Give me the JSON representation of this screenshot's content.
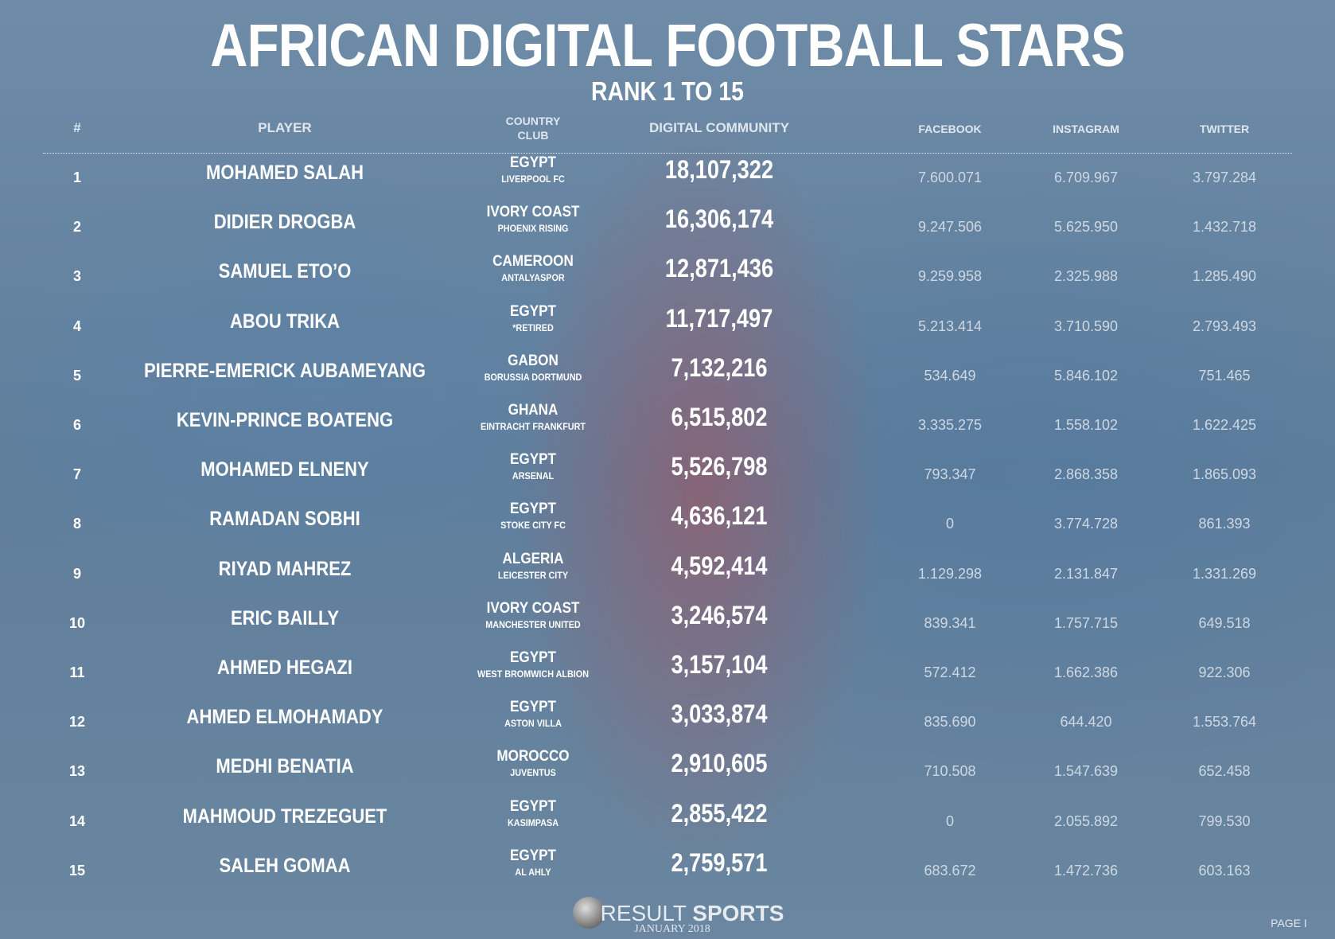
{
  "header": {
    "title": "AFRICAN DIGITAL FOOTBALL STARS",
    "subtitle": "RANK 1 TO 15"
  },
  "table": {
    "columns": {
      "rank": "#",
      "player": "PLAYER",
      "country": "COUNTRY",
      "club": "CLUB",
      "community": "DIGITAL COMMUNITY",
      "facebook": "FACEBOOK",
      "instagram": "INSTAGRAM",
      "twitter": "TWITTER"
    },
    "rows": [
      [
        "1",
        "MOHAMED SALAH",
        "EGYPT",
        "LIVERPOOL FC",
        "18,107,322",
        "7.600.071",
        "6.709.967",
        "3.797.284"
      ],
      [
        "2",
        "DIDIER DROGBA",
        "IVORY COAST",
        "PHOENIX RISING",
        "16,306,174",
        "9.247.506",
        "5.625.950",
        "1.432.718"
      ],
      [
        "3",
        "SAMUEL ETO’O",
        "CAMEROON",
        "ANTALYASPOR",
        "12,871,436",
        "9.259.958",
        "2.325.988",
        "1.285.490"
      ],
      [
        "4",
        "ABOU TRIKA",
        "EGYPT",
        "*RETIRED",
        "11,717,497",
        "5.213.414",
        "3.710.590",
        "2.793.493"
      ],
      [
        "5",
        "PIERRE-EMERICK AUBAMEYANG",
        "GABON",
        "BORUSSIA DORTMUND",
        "7,132,216",
        "534.649",
        "5.846.102",
        "751.465"
      ],
      [
        "6",
        "KEVIN-PRINCE BOATENG",
        "GHANA",
        "EINTRACHT FRANKFURT",
        "6,515,802",
        "3.335.275",
        "1.558.102",
        "1.622.425"
      ],
      [
        "7",
        "MOHAMED ELNENY",
        "EGYPT",
        "ARSENAL",
        "5,526,798",
        "793.347",
        "2.868.358",
        "1.865.093"
      ],
      [
        "8",
        "RAMADAN SOBHI",
        "EGYPT",
        "STOKE CITY FC",
        "4,636,121",
        "0",
        "3.774.728",
        "861.393"
      ],
      [
        "9",
        "RIYAD MAHREZ",
        "ALGERIA",
        "LEICESTER CITY",
        "4,592,414",
        "1.129.298",
        "2.131.847",
        "1.331.269"
      ],
      [
        "10",
        "ERIC BAILLY",
        "IVORY COAST",
        "MANCHESTER UNITED",
        "3,246,574",
        "839.341",
        "1.757.715",
        "649.518"
      ],
      [
        "11",
        "AHMED HEGAZI",
        "EGYPT",
        "WEST BROMWICH ALBION",
        "3,157,104",
        "572.412",
        "1.662.386",
        "922.306"
      ],
      [
        "12",
        "AHMED ELMOHAMADY",
        "EGYPT",
        "ASTON VILLA",
        "3,033,874",
        "835.690",
        "644.420",
        "1.553.764"
      ],
      [
        "13",
        "MEDHI BENATIA",
        "MOROCCO",
        "JUVENTUS",
        "2,910,605",
        "710.508",
        "1.547.639",
        "652.458"
      ],
      [
        "14",
        "MAHMOUD TREZEGUET",
        "EGYPT",
        "KASIMPASA",
        "2,855,422",
        "0",
        "2.055.892",
        "799.530"
      ],
      [
        "15",
        "SALEH GOMAA",
        "EGYPT",
        "AL AHLY",
        "2,759,571",
        "683.672",
        "1.472.736",
        "603.163"
      ]
    ]
  },
  "footer": {
    "brand": "RESULT",
    "brand_bold": "SPORTS",
    "date": "JANUARY 2018",
    "page": "PAGE I"
  }
}
